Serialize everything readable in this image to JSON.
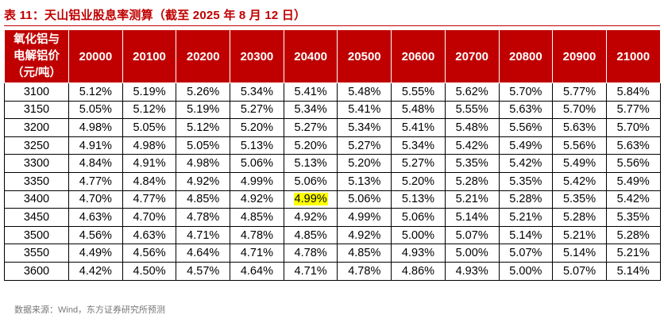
{
  "title": "表 11：天山铝业股息率测算（截至 2025 年 8 月 12 日）",
  "corner_header": [
    "氧化铝与",
    "电解铝价",
    "（元/吨）"
  ],
  "columns": [
    "20000",
    "20100",
    "20200",
    "20300",
    "20400",
    "20500",
    "20600",
    "20700",
    "20800",
    "20900",
    "21000"
  ],
  "rows": [
    {
      "label": "3100",
      "values": [
        "5.12%",
        "5.19%",
        "5.26%",
        "5.34%",
        "5.41%",
        "5.48%",
        "5.55%",
        "5.62%",
        "5.70%",
        "5.77%",
        "5.84%"
      ]
    },
    {
      "label": "3150",
      "values": [
        "5.05%",
        "5.12%",
        "5.19%",
        "5.27%",
        "5.34%",
        "5.41%",
        "5.48%",
        "5.55%",
        "5.63%",
        "5.70%",
        "5.77%"
      ]
    },
    {
      "label": "3200",
      "values": [
        "4.98%",
        "5.05%",
        "5.12%",
        "5.20%",
        "5.27%",
        "5.34%",
        "5.41%",
        "5.48%",
        "5.56%",
        "5.63%",
        "5.70%"
      ]
    },
    {
      "label": "3250",
      "values": [
        "4.91%",
        "4.98%",
        "5.05%",
        "5.13%",
        "5.20%",
        "5.27%",
        "5.34%",
        "5.42%",
        "5.49%",
        "5.56%",
        "5.63%"
      ]
    },
    {
      "label": "3300",
      "values": [
        "4.84%",
        "4.91%",
        "4.98%",
        "5.06%",
        "5.13%",
        "5.20%",
        "5.27%",
        "5.35%",
        "5.42%",
        "5.49%",
        "5.56%"
      ]
    },
    {
      "label": "3350",
      "values": [
        "4.77%",
        "4.84%",
        "4.92%",
        "4.99%",
        "5.06%",
        "5.13%",
        "5.20%",
        "5.28%",
        "5.35%",
        "5.42%",
        "5.49%"
      ]
    },
    {
      "label": "3400",
      "values": [
        "4.70%",
        "4.77%",
        "4.85%",
        "4.92%",
        "4.99%",
        "5.06%",
        "5.13%",
        "5.21%",
        "5.28%",
        "5.35%",
        "5.42%"
      ]
    },
    {
      "label": "3450",
      "values": [
        "4.63%",
        "4.70%",
        "4.78%",
        "4.85%",
        "4.92%",
        "4.99%",
        "5.06%",
        "5.14%",
        "5.21%",
        "5.28%",
        "5.35%"
      ]
    },
    {
      "label": "3500",
      "values": [
        "4.56%",
        "4.63%",
        "4.71%",
        "4.78%",
        "4.85%",
        "4.92%",
        "5.00%",
        "5.07%",
        "5.14%",
        "5.21%",
        "5.28%"
      ]
    },
    {
      "label": "3550",
      "values": [
        "4.49%",
        "4.56%",
        "4.64%",
        "4.71%",
        "4.78%",
        "4.85%",
        "4.93%",
        "5.00%",
        "5.07%",
        "5.14%",
        "5.21%"
      ]
    },
    {
      "label": "3600",
      "values": [
        "4.42%",
        "4.50%",
        "4.57%",
        "4.64%",
        "4.71%",
        "4.78%",
        "4.86%",
        "4.93%",
        "5.00%",
        "5.07%",
        "5.14%"
      ]
    }
  ],
  "highlight": {
    "row": 6,
    "col": 4,
    "color": "#ffff00"
  },
  "colors": {
    "header_bg": "#c00000",
    "title_text": "#c00000"
  },
  "source": "数据来源：Wind，东方证券研究所预测"
}
